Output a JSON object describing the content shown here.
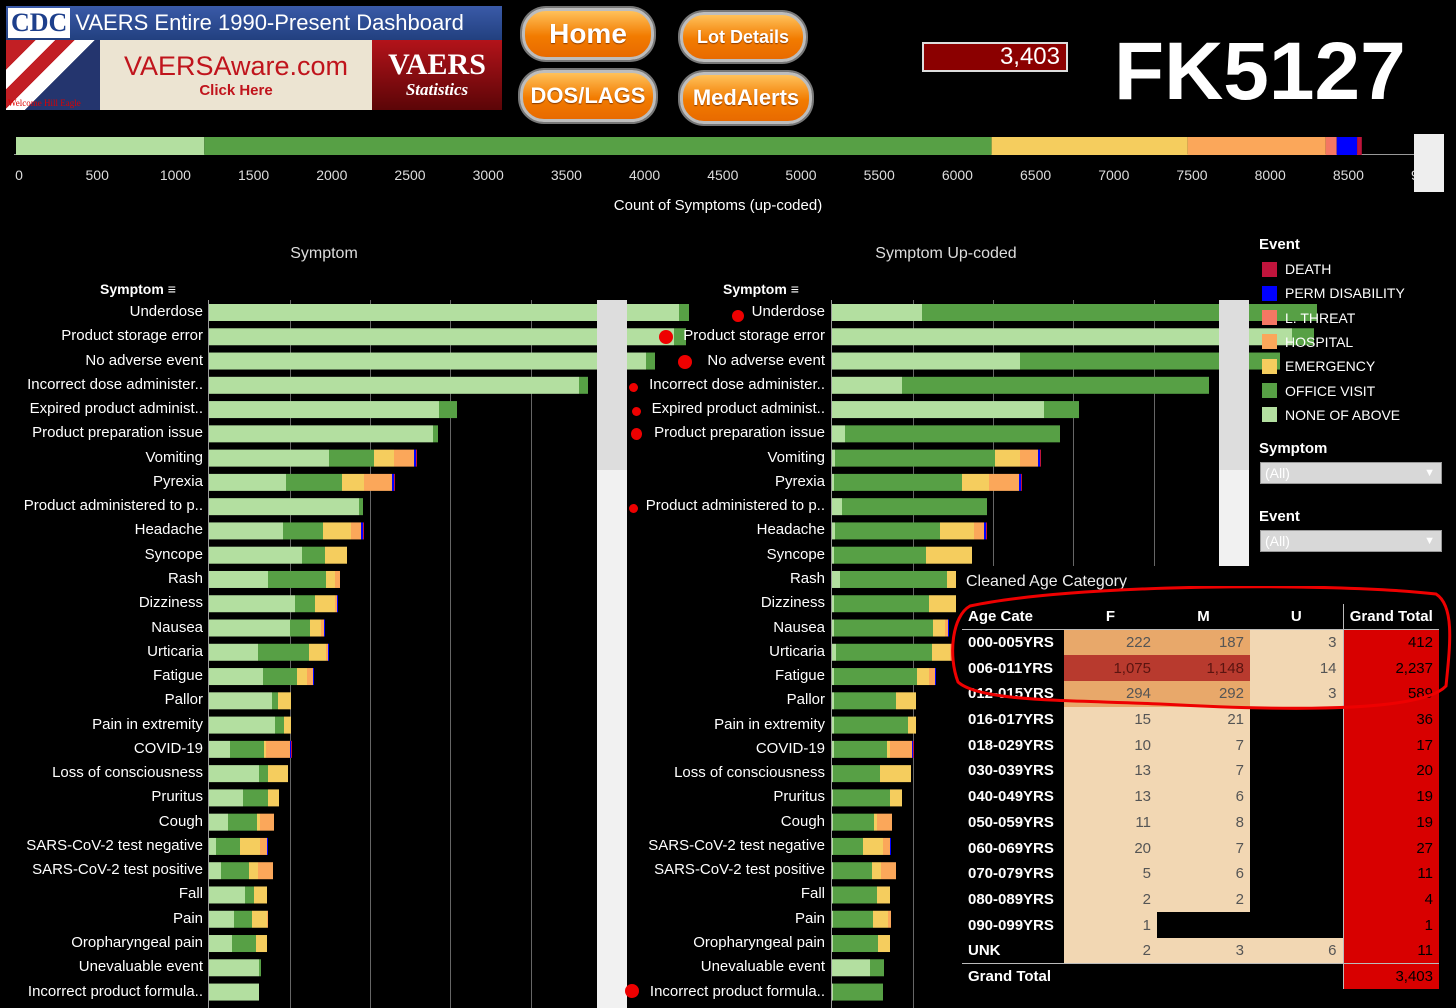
{
  "header": {
    "cdc_logo": "CDC",
    "dashboard_title": "VAERS Entire 1990-Present Dashboard",
    "eagle_caption": "Welcome Hill Eagle",
    "vaersaware_title": "VAERSAware.com",
    "vaersaware_sub": "Click Here",
    "vaers_stats_title": "VAERS",
    "vaers_stats_sub": "Statistics",
    "buttons": {
      "home": "Home",
      "lot_details": "Lot Details",
      "dos_lags": "DOS/LAGS",
      "medalerts": "MedAlerts"
    },
    "count": "3,403",
    "lot_number": "FK5127"
  },
  "colors": {
    "death": "#c0143c",
    "perm_disability": "#0000ff",
    "l_threat": "#f47763",
    "hospital": "#fba75a",
    "emergency": "#f5cd5e",
    "office_visit": "#57a045",
    "none_of_above": "#b3dfa0"
  },
  "top_bar": {
    "axis_label": "Count of Symptoms (up-coded)",
    "ticks": [
      "0",
      "500",
      "1000",
      "1500",
      "2000",
      "2500",
      "3000",
      "3500",
      "4000",
      "4500",
      "5000",
      "5500",
      "6000",
      "6500",
      "7000",
      "7500",
      "8000",
      "8500",
      "9000"
    ],
    "segments": [
      1200,
      5020,
      1250,
      880,
      70,
      130,
      30
    ]
  },
  "legend": {
    "title": "Event",
    "items": [
      "DEATH",
      "PERM DISABILITY",
      "L. THREAT",
      "HOSPITAL",
      "EMERGENCY",
      "OFFICE VISIT",
      "NONE OF ABOVE"
    ]
  },
  "filters": {
    "symptom_title": "Symptom",
    "symptom_value": "(All)",
    "event_title": "Event",
    "event_value": "(All)"
  },
  "panels": {
    "left_title": "Symptom",
    "right_title": "Symptom Up-coded",
    "col_header": "Symptom"
  },
  "symptoms": [
    {
      "label": "Underdose",
      "left": [
        470,
        10,
        0,
        0,
        0,
        0,
        0
      ],
      "right": [
        90,
        395,
        0,
        0,
        0,
        0,
        0
      ]
    },
    {
      "label": "Product storage error",
      "left": [
        465,
        12,
        0,
        0,
        0,
        0,
        0
      ],
      "right": [
        460,
        22,
        0,
        0,
        0,
        0,
        0
      ]
    },
    {
      "label": "No adverse event",
      "left": [
        437,
        9,
        0,
        0,
        0,
        0,
        0
      ],
      "right": [
        188,
        260,
        0,
        0,
        0,
        0,
        0
      ]
    },
    {
      "label": "Incorrect dose administer..",
      "left": [
        370,
        9,
        0,
        0,
        0,
        0,
        0
      ],
      "right": [
        70,
        307,
        0,
        0,
        0,
        0,
        0
      ]
    },
    {
      "label": "Expired product administ..",
      "left": [
        230,
        18,
        0,
        0,
        0,
        0,
        0
      ],
      "right": [
        212,
        35,
        0,
        0,
        0,
        0,
        0
      ]
    },
    {
      "label": "Product preparation issue",
      "left": [
        224,
        5,
        0,
        0,
        0,
        0,
        0
      ],
      "right": [
        13,
        215,
        0,
        0,
        0,
        0,
        0
      ]
    },
    {
      "label": "Vomiting",
      "left": [
        120,
        45,
        20,
        20,
        0,
        2,
        1
      ],
      "right": [
        3,
        160,
        25,
        18,
        0,
        2,
        1
      ]
    },
    {
      "label": "Pyrexia",
      "left": [
        77,
        56,
        22,
        28,
        0,
        2,
        1
      ],
      "right": [
        2,
        128,
        27,
        30,
        0,
        2,
        1
      ]
    },
    {
      "label": "Product administered to p..",
      "left": [
        150,
        4,
        0,
        0,
        0,
        0,
        0
      ],
      "right": [
        10,
        145,
        0,
        0,
        0,
        0,
        0
      ]
    },
    {
      "label": "Headache",
      "left": [
        74,
        40,
        28,
        10,
        0,
        2,
        1
      ],
      "right": [
        3,
        105,
        34,
        10,
        0,
        2,
        1
      ]
    },
    {
      "label": "Syncope",
      "left": [
        93,
        23,
        22,
        0,
        0,
        0,
        0
      ],
      "right": [
        2,
        92,
        46,
        0,
        0,
        0,
        0
      ]
    },
    {
      "label": "Rash",
      "left": [
        59,
        58,
        9,
        5,
        0,
        0,
        0
      ],
      "right": [
        8,
        107,
        16,
        5,
        0,
        0,
        0
      ]
    },
    {
      "label": "Dizziness",
      "left": [
        86,
        20,
        20,
        2,
        0,
        1,
        0
      ],
      "right": [
        2,
        95,
        30,
        2,
        0,
        1,
        0
      ]
    },
    {
      "label": "Nausea",
      "left": [
        81,
        20,
        11,
        3,
        0,
        1,
        0
      ],
      "right": [
        2,
        99,
        12,
        3,
        0,
        1,
        0
      ]
    },
    {
      "label": "Urticaria",
      "left": [
        49,
        51,
        17,
        2,
        0,
        1,
        0
      ],
      "right": [
        4,
        96,
        18,
        2,
        0,
        1,
        0
      ]
    },
    {
      "label": "Fatigue",
      "left": [
        54,
        34,
        10,
        6,
        0,
        1,
        0
      ],
      "right": [
        2,
        83,
        12,
        6,
        0,
        1,
        0
      ]
    },
    {
      "label": "Pallor",
      "left": [
        63,
        6,
        13,
        0,
        0,
        0,
        0
      ],
      "right": [
        2,
        62,
        20,
        0,
        0,
        0,
        0
      ]
    },
    {
      "label": "Pain in extremity",
      "left": [
        66,
        9,
        7,
        0,
        0,
        0,
        0
      ],
      "right": [
        2,
        74,
        8,
        0,
        0,
        0,
        0
      ]
    },
    {
      "label": "COVID-19",
      "left": [
        21,
        34,
        2,
        24,
        0,
        1,
        1
      ],
      "right": [
        2,
        53,
        3,
        22,
        0,
        1,
        1
      ]
    },
    {
      "label": "Loss of consciousness",
      "left": [
        50,
        9,
        20,
        0,
        0,
        0,
        0
      ],
      "right": [
        1,
        47,
        31,
        0,
        0,
        0,
        0
      ]
    },
    {
      "label": "Pruritus",
      "left": [
        34,
        25,
        11,
        0,
        0,
        0,
        0
      ],
      "right": [
        1,
        57,
        12,
        0,
        0,
        0,
        0
      ]
    },
    {
      "label": "Cough",
      "left": [
        19,
        29,
        3,
        14,
        0,
        0,
        0
      ],
      "right": [
        1,
        41,
        3,
        15,
        0,
        0,
        0
      ]
    },
    {
      "label": "SARS-CoV-2 test negative",
      "left": [
        7,
        24,
        20,
        7,
        0,
        1,
        0
      ],
      "right": [
        1,
        30,
        20,
        7,
        0,
        1,
        0
      ]
    },
    {
      "label": "SARS-CoV-2 test positive",
      "left": [
        12,
        28,
        9,
        15,
        0,
        0,
        0
      ],
      "right": [
        1,
        39,
        9,
        15,
        0,
        0,
        0
      ]
    },
    {
      "label": "Fall",
      "left": [
        36,
        9,
        13,
        0,
        0,
        0,
        0
      ],
      "right": [
        1,
        44,
        13,
        0,
        0,
        0,
        0
      ]
    },
    {
      "label": "Pain",
      "left": [
        25,
        18,
        15,
        1,
        0,
        0,
        0
      ],
      "right": [
        1,
        40,
        15,
        3,
        0,
        0,
        0
      ]
    },
    {
      "label": "Oropharyngeal pain",
      "left": [
        23,
        24,
        11,
        0,
        0,
        0,
        0
      ],
      "right": [
        1,
        45,
        12,
        0,
        0,
        0,
        0
      ]
    },
    {
      "label": "Unevaluable event",
      "left": [
        50,
        2,
        0,
        0,
        0,
        0,
        0
      ],
      "right": [
        38,
        14,
        0,
        0,
        0,
        0,
        0
      ]
    },
    {
      "label": "Incorrect product formula..",
      "left": [
        50,
        0,
        0,
        0,
        0,
        0,
        0
      ],
      "right": [
        1,
        50,
        0,
        0,
        0,
        0,
        0
      ]
    }
  ],
  "age_table": {
    "title": "Cleaned Age Category",
    "headers": [
      "Age Cate",
      "F",
      "M",
      "U",
      "Grand Total"
    ],
    "rows": [
      {
        "cat": "000-005YRS",
        "f": "222",
        "m": "187",
        "u": "3",
        "total": "412"
      },
      {
        "cat": "006-011YRS",
        "f": "1,075",
        "m": "1,148",
        "u": "14",
        "total": "2,237"
      },
      {
        "cat": "012-015YRS",
        "f": "294",
        "m": "292",
        "u": "3",
        "total": "589"
      },
      {
        "cat": "016-017YRS",
        "f": "15",
        "m": "21",
        "u": "",
        "total": "36"
      },
      {
        "cat": "018-029YRS",
        "f": "10",
        "m": "7",
        "u": "",
        "total": "17"
      },
      {
        "cat": "030-039YRS",
        "f": "13",
        "m": "7",
        "u": "",
        "total": "20"
      },
      {
        "cat": "040-049YRS",
        "f": "13",
        "m": "6",
        "u": "",
        "total": "19"
      },
      {
        "cat": "050-059YRS",
        "f": "11",
        "m": "8",
        "u": "",
        "total": "19"
      },
      {
        "cat": "060-069YRS",
        "f": "20",
        "m": "7",
        "u": "",
        "total": "27"
      },
      {
        "cat": "070-079YRS",
        "f": "5",
        "m": "6",
        "u": "",
        "total": "11"
      },
      {
        "cat": "080-089YRS",
        "f": "2",
        "m": "2",
        "u": "",
        "total": "4"
      },
      {
        "cat": "090-099YRS",
        "f": "1",
        "m": "",
        "u": "",
        "total": "1"
      },
      {
        "cat": "UNK",
        "f": "2",
        "m": "3",
        "u": "6",
        "total": "11"
      }
    ],
    "grand_total_label": "Grand Total",
    "grand_total": "3,403"
  }
}
